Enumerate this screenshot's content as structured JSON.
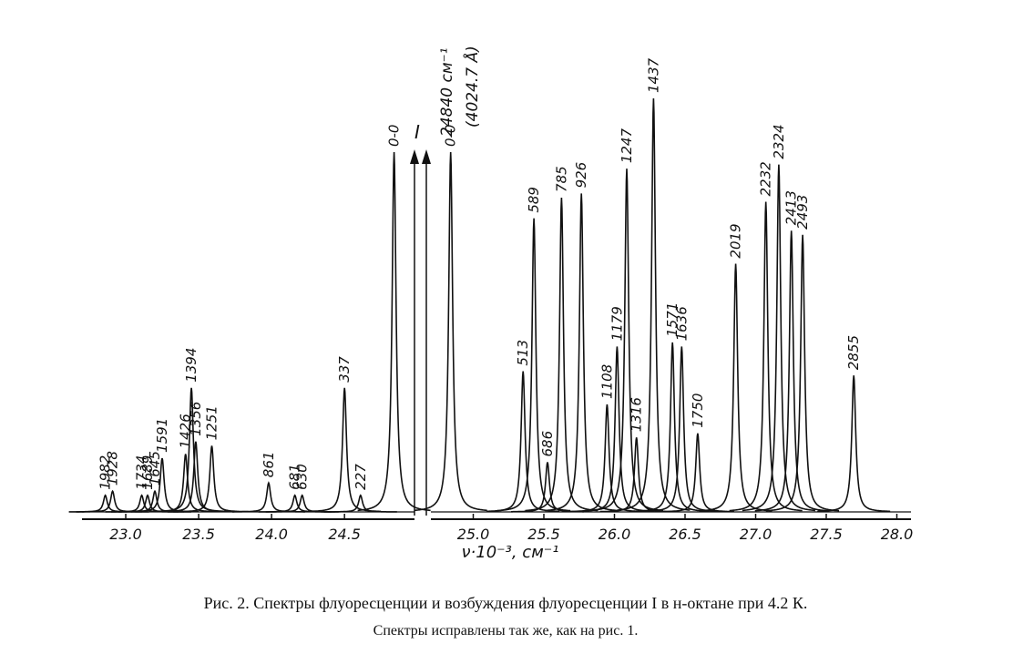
{
  "chart_data": {
    "type": "spectrum",
    "x_label": "ν·10⁻³, см⁻¹",
    "ylim": [
      0,
      100
    ],
    "annotations": [
      "I",
      "24840 см⁻¹",
      "(4024.7 Å)"
    ],
    "panels": [
      {
        "xlim": [
          22.7,
          24.98
        ],
        "xticks": [
          {
            "value": 23,
            "label": "23.0"
          },
          {
            "value": 23.5,
            "label": "23.5"
          },
          {
            "value": 24,
            "label": "24.0"
          },
          {
            "value": 24.5,
            "label": "24.5"
          }
        ],
        "x": [
          22.86,
          22.91,
          23.11,
          23.15,
          23.2,
          23.25,
          23.41,
          23.45,
          23.48,
          23.59,
          23.98,
          24.16,
          24.21,
          24.5,
          24.61,
          24.84
        ],
        "values": [
          4,
          5,
          4,
          4,
          5,
          13,
          14,
          30,
          17,
          16,
          7,
          4,
          4,
          30,
          4,
          87
        ],
        "labels": [
          "1982",
          "1928",
          "1734",
          "1689",
          "1645",
          "1591",
          "1426",
          "1394",
          "1356",
          "1251",
          "861",
          "681",
          "630",
          "337",
          "227",
          "0-0"
        ]
      },
      {
        "xlim": [
          24.7,
          28.1
        ],
        "xticks": [
          {
            "value": 25,
            "label": "25.0"
          },
          25.5,
          {
            "value": 26,
            "label": "26.0"
          },
          26.5,
          {
            "value": 27,
            "label": "27.0"
          },
          27.5,
          {
            "value": 28,
            "label": "28.0"
          }
        ],
        "x": [
          24.84,
          25.353,
          25.43,
          25.526,
          25.625,
          25.766,
          25.948,
          26.019,
          26.087,
          26.156,
          26.277,
          26.411,
          26.476,
          26.59,
          26.859,
          27.072,
          27.164,
          27.253,
          27.333,
          27.695
        ],
        "values": [
          87,
          34,
          71,
          12,
          76,
          77,
          26,
          40,
          83,
          18,
          100,
          41,
          40,
          19,
          60,
          75,
          84,
          68,
          67,
          33
        ],
        "labels": [
          "0-0",
          "513",
          "589",
          "686",
          "785",
          "926",
          "1108",
          "1179",
          "1247",
          "1316",
          "1437",
          "1571",
          "1636",
          "1750",
          "2019",
          "2232",
          "2324",
          "2413",
          "2493",
          "2855"
        ]
      }
    ]
  },
  "caption": [
    "Рис. 2. Спектры флуоресценции и возбуждения флуоресценции I в н-октане при 4.2 К.",
    "Спектры исправлены так же, как на рис. 1."
  ]
}
